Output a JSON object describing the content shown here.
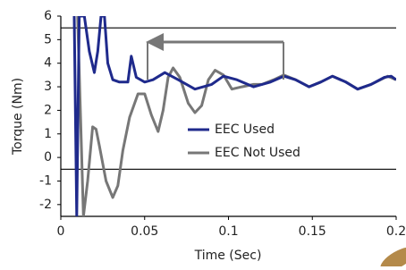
{
  "chart_data": {
    "type": "line",
    "x_label": "Time (Sec)",
    "y_label": "Torque (Nm)",
    "xlim": [
      0,
      0.2
    ],
    "xticks": [
      0,
      0.05,
      0.1,
      0.15,
      0.2
    ],
    "ylim": [
      -2.5,
      6
    ],
    "yticks": [
      -2,
      -1,
      0,
      1,
      2,
      3,
      4,
      5,
      6
    ],
    "hlines": [
      5.5,
      -0.5
    ],
    "legend": "right",
    "series": [
      {
        "name": "EEC Used",
        "color": "#1f2a8c",
        "x": [
          0.008,
          0.0095,
          0.011,
          0.014,
          0.017,
          0.02,
          0.022,
          0.024,
          0.026,
          0.028,
          0.031,
          0.035,
          0.04,
          0.042,
          0.045,
          0.05,
          0.055,
          0.062,
          0.07,
          0.08,
          0.09,
          0.097,
          0.105,
          0.115,
          0.125,
          0.133,
          0.14,
          0.148,
          0.155,
          0.162,
          0.17,
          0.177,
          0.185,
          0.193,
          0.197,
          0.2
        ],
        "values": [
          6,
          -2.5,
          6,
          6,
          4.5,
          3.6,
          4.5,
          6,
          6,
          4.0,
          3.3,
          3.2,
          3.2,
          4.3,
          3.4,
          3.2,
          3.3,
          3.6,
          3.3,
          2.9,
          3.1,
          3.45,
          3.3,
          3.0,
          3.2,
          3.45,
          3.3,
          3.0,
          3.2,
          3.45,
          3.2,
          2.9,
          3.1,
          3.4,
          3.45,
          3.3
        ]
      },
      {
        "name": "EEC Not Used",
        "color": "#777777",
        "x": [
          0.01,
          0.0135,
          0.016,
          0.019,
          0.021,
          0.023,
          0.027,
          0.031,
          0.034,
          0.037,
          0.041,
          0.046,
          0.05,
          0.054,
          0.058,
          0.061,
          0.064,
          0.067,
          0.071,
          0.076,
          0.08,
          0.084,
          0.088,
          0.092,
          0.097,
          0.102,
          0.108,
          0.115,
          0.12,
          0.127,
          0.133,
          0.14,
          0.148,
          0.155,
          0.162,
          0.17,
          0.177,
          0.185,
          0.195,
          0.2
        ],
        "values": [
          6,
          -2.5,
          -1.0,
          1.3,
          1.2,
          0.5,
          -1.0,
          -1.7,
          -1.2,
          0.3,
          1.7,
          2.7,
          2.7,
          1.8,
          1.1,
          2.0,
          3.4,
          3.8,
          3.4,
          2.3,
          1.9,
          2.2,
          3.3,
          3.7,
          3.5,
          2.9,
          3.0,
          3.1,
          3.1,
          3.3,
          3.5,
          3.3,
          3.0,
          3.2,
          3.45,
          3.2,
          2.9,
          3.1,
          3.45,
          3.3
        ]
      }
    ]
  }
}
